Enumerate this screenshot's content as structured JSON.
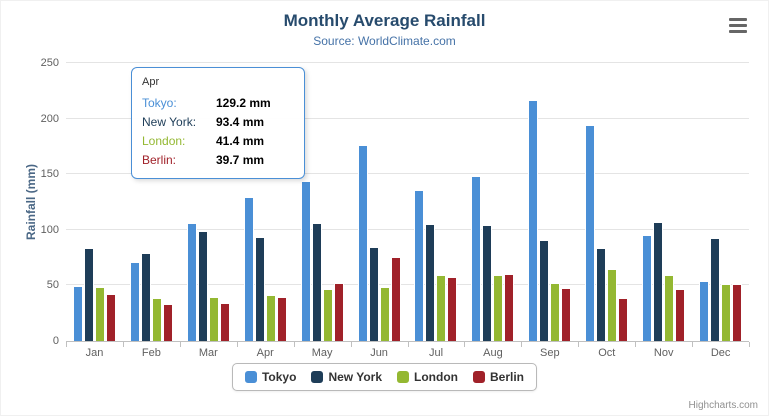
{
  "chart_data": {
    "type": "bar",
    "title": "Monthly Average Rainfall",
    "subtitle": "Source: WorldClimate.com",
    "ylabel": "Rainfall (mm)",
    "ylim": [
      0,
      250
    ],
    "ytick_step": 50,
    "grid": true,
    "legend_position": "bottom",
    "categories": [
      "Jan",
      "Feb",
      "Mar",
      "Apr",
      "May",
      "Jun",
      "Jul",
      "Aug",
      "Sep",
      "Oct",
      "Nov",
      "Dec"
    ],
    "series": [
      {
        "name": "Tokyo",
        "color": "#4a8fd6",
        "values": [
          49.9,
          71.5,
          106.4,
          129.2,
          144.0,
          176.0,
          135.6,
          148.5,
          216.4,
          194.1,
          95.6,
          54.4
        ]
      },
      {
        "name": "New York",
        "color": "#1e3d58",
        "values": [
          83.6,
          78.8,
          98.5,
          93.4,
          106.0,
          84.5,
          105.0,
          104.3,
          91.2,
          83.5,
          106.6,
          92.3
        ]
      },
      {
        "name": "London",
        "color": "#94b832",
        "values": [
          48.9,
          38.8,
          39.3,
          41.4,
          47.0,
          48.3,
          59.0,
          59.6,
          52.4,
          65.2,
          59.3,
          51.2
        ]
      },
      {
        "name": "Berlin",
        "color": "#a02129",
        "values": [
          42.4,
          33.2,
          34.5,
          39.7,
          52.6,
          75.5,
          57.4,
          60.4,
          47.6,
          39.1,
          46.8,
          51.1
        ]
      }
    ],
    "credits": "Highcharts.com"
  },
  "tooltip": {
    "header": "Apr",
    "rows": [
      {
        "name": "Tokyo:",
        "value": "129.2 mm"
      },
      {
        "name": "New York:",
        "value": "93.4 mm"
      },
      {
        "name": "London:",
        "value": "41.4 mm"
      },
      {
        "name": "Berlin:",
        "value": "39.7 mm"
      }
    ]
  },
  "colors": {
    "title": "#274b6d",
    "subtitle": "#4572a7",
    "axis_labels": "#606060",
    "gridline": "#e4e4e4"
  }
}
